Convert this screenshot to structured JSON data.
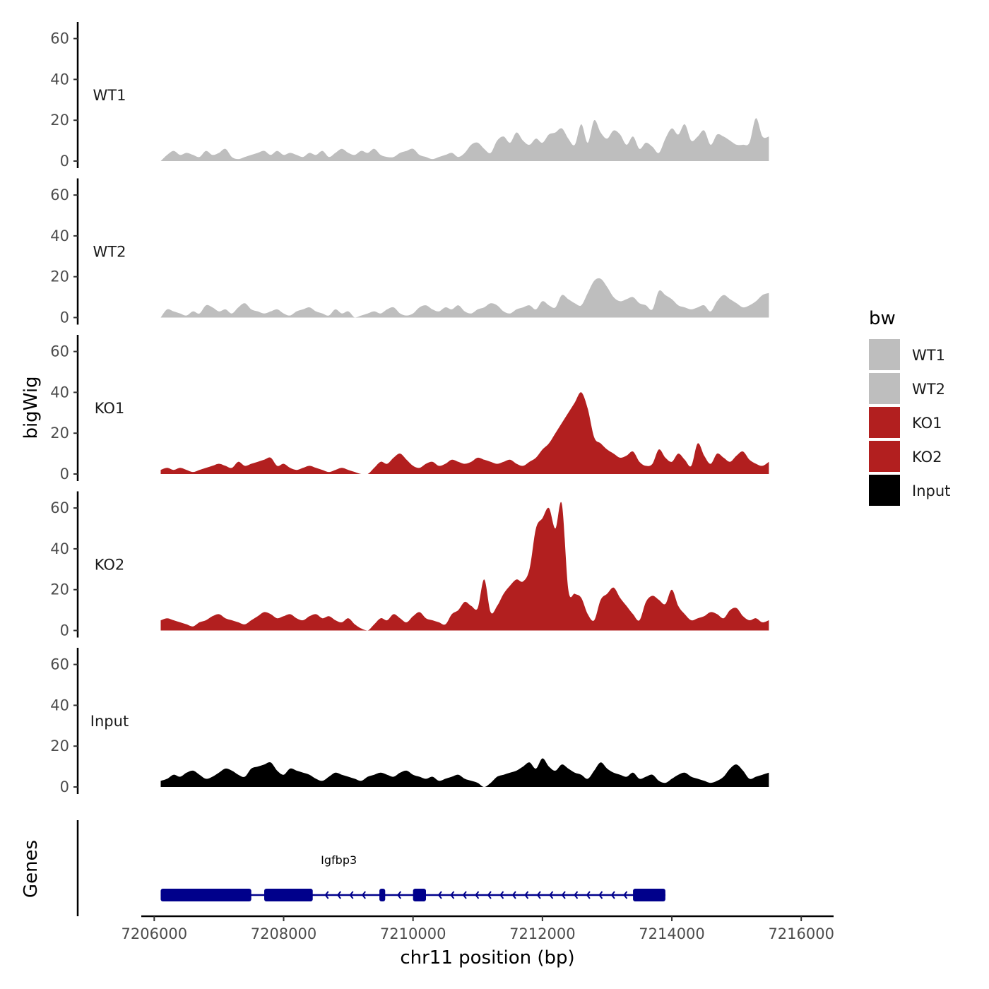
{
  "chart_data": {
    "type": "area",
    "chromosome": "chr11",
    "xlabel": "chr11 position (bp)",
    "ylabel": "bigWig",
    "genes_label": "Genes",
    "xlim": [
      7205800,
      7216500
    ],
    "x_ticks": [
      7206000,
      7208000,
      7210000,
      7212000,
      7214000,
      7216000
    ],
    "x_tick_labels": [
      "7206000",
      "7208000",
      "7210000",
      "7212000",
      "7214000",
      "7216000"
    ],
    "ylim": [
      0,
      68
    ],
    "y_ticks": [
      0,
      20,
      40,
      60
    ],
    "y_tick_labels": [
      "0",
      "20",
      "40",
      "60"
    ],
    "data_start": 7206100,
    "data_step": 100,
    "legend": {
      "title": "bw",
      "entries": [
        {
          "label": "WT1",
          "color": "#bebebe"
        },
        {
          "label": "WT2",
          "color": "#bebebe"
        },
        {
          "label": "KO1",
          "color": "#b21f1f"
        },
        {
          "label": "KO2",
          "color": "#b21f1f"
        },
        {
          "label": "Input",
          "color": "#000000"
        }
      ]
    },
    "series": [
      {
        "name": "WT1",
        "color": "#bebebe",
        "values": [
          0,
          3,
          5,
          3,
          4,
          3,
          2,
          5,
          3,
          4,
          6,
          2,
          1,
          2,
          3,
          4,
          5,
          3,
          5,
          3,
          4,
          3,
          2,
          4,
          3,
          5,
          2,
          4,
          6,
          4,
          3,
          5,
          4,
          6,
          3,
          2,
          2,
          4,
          5,
          6,
          3,
          2,
          1,
          2,
          3,
          4,
          2,
          4,
          8,
          9,
          6,
          4,
          10,
          12,
          9,
          14,
          10,
          8,
          11,
          9,
          13,
          14,
          16,
          11,
          8,
          18,
          9,
          20,
          14,
          11,
          15,
          13,
          8,
          12,
          6,
          9,
          7,
          4,
          11,
          16,
          13,
          18,
          10,
          12,
          15,
          8,
          13,
          12,
          10,
          8,
          8,
          9,
          21,
          12,
          12
        ]
      },
      {
        "name": "WT2",
        "color": "#bebebe",
        "values": [
          0,
          4,
          3,
          2,
          1,
          3,
          2,
          6,
          5,
          3,
          4,
          2,
          5,
          7,
          4,
          3,
          2,
          3,
          4,
          2,
          1,
          3,
          4,
          5,
          3,
          2,
          1,
          4,
          2,
          3,
          0,
          1,
          2,
          3,
          2,
          4,
          5,
          2,
          1,
          2,
          5,
          6,
          4,
          3,
          5,
          4,
          6,
          3,
          2,
          4,
          5,
          7,
          6,
          3,
          2,
          4,
          5,
          6,
          4,
          8,
          6,
          5,
          11,
          9,
          7,
          6,
          12,
          18,
          19,
          15,
          10,
          8,
          9,
          10,
          7,
          6,
          4,
          13,
          11,
          9,
          6,
          5,
          4,
          5,
          6,
          3,
          8,
          11,
          9,
          7,
          5,
          6,
          8,
          11,
          12
        ]
      },
      {
        "name": "KO1",
        "color": "#b21f1f",
        "values": [
          2,
          3,
          2,
          3,
          2,
          1,
          2,
          3,
          4,
          5,
          4,
          3,
          6,
          4,
          5,
          6,
          7,
          8,
          4,
          5,
          3,
          2,
          3,
          4,
          3,
          2,
          1,
          2,
          3,
          2,
          1,
          0,
          0,
          3,
          6,
          5,
          8,
          10,
          7,
          4,
          3,
          5,
          6,
          4,
          5,
          7,
          6,
          5,
          6,
          8,
          7,
          6,
          5,
          6,
          7,
          5,
          4,
          6,
          8,
          12,
          15,
          20,
          25,
          30,
          35,
          40,
          32,
          18,
          15,
          12,
          10,
          8,
          9,
          11,
          6,
          4,
          5,
          12,
          8,
          6,
          10,
          7,
          4,
          15,
          9,
          5,
          10,
          8,
          6,
          9,
          11,
          7,
          5,
          4,
          6
        ]
      },
      {
        "name": "KO2",
        "color": "#b21f1f",
        "values": [
          5,
          6,
          5,
          4,
          3,
          2,
          4,
          5,
          7,
          8,
          6,
          5,
          4,
          3,
          5,
          7,
          9,
          8,
          6,
          7,
          8,
          6,
          5,
          7,
          8,
          6,
          7,
          5,
          4,
          6,
          3,
          1,
          0,
          3,
          6,
          5,
          8,
          6,
          4,
          7,
          9,
          6,
          5,
          4,
          3,
          8,
          10,
          14,
          12,
          11,
          25,
          9,
          12,
          18,
          22,
          25,
          24,
          30,
          50,
          55,
          60,
          50,
          62,
          20,
          18,
          16,
          8,
          5,
          15,
          18,
          21,
          16,
          12,
          8,
          5,
          14,
          17,
          15,
          13,
          20,
          12,
          8,
          5,
          6,
          7,
          9,
          8,
          6,
          10,
          11,
          7,
          5,
          6,
          4,
          5
        ]
      },
      {
        "name": "Input",
        "color": "#000000",
        "values": [
          3,
          4,
          6,
          5,
          7,
          8,
          6,
          4,
          5,
          7,
          9,
          8,
          6,
          5,
          9,
          10,
          11,
          12,
          8,
          6,
          9,
          8,
          7,
          6,
          4,
          3,
          5,
          7,
          6,
          5,
          4,
          3,
          5,
          6,
          7,
          6,
          5,
          7,
          8,
          6,
          5,
          4,
          5,
          3,
          4,
          5,
          6,
          4,
          3,
          2,
          0,
          2,
          5,
          6,
          7,
          8,
          10,
          12,
          9,
          14,
          10,
          8,
          11,
          9,
          7,
          6,
          4,
          8,
          12,
          9,
          7,
          6,
          5,
          7,
          4,
          5,
          6,
          3,
          2,
          4,
          6,
          7,
          5,
          4,
          3,
          2,
          3,
          5,
          9,
          11,
          8,
          4,
          5,
          6,
          7
        ]
      }
    ],
    "gene": {
      "name": "Igfbp3",
      "strand": "-",
      "start": 7206100,
      "end": 7213900,
      "exons": [
        [
          7206100,
          7207500
        ],
        [
          7207700,
          7208450
        ],
        [
          7209480,
          7209570
        ],
        [
          7210000,
          7210200
        ],
        [
          7213400,
          7213900
        ]
      ]
    }
  }
}
